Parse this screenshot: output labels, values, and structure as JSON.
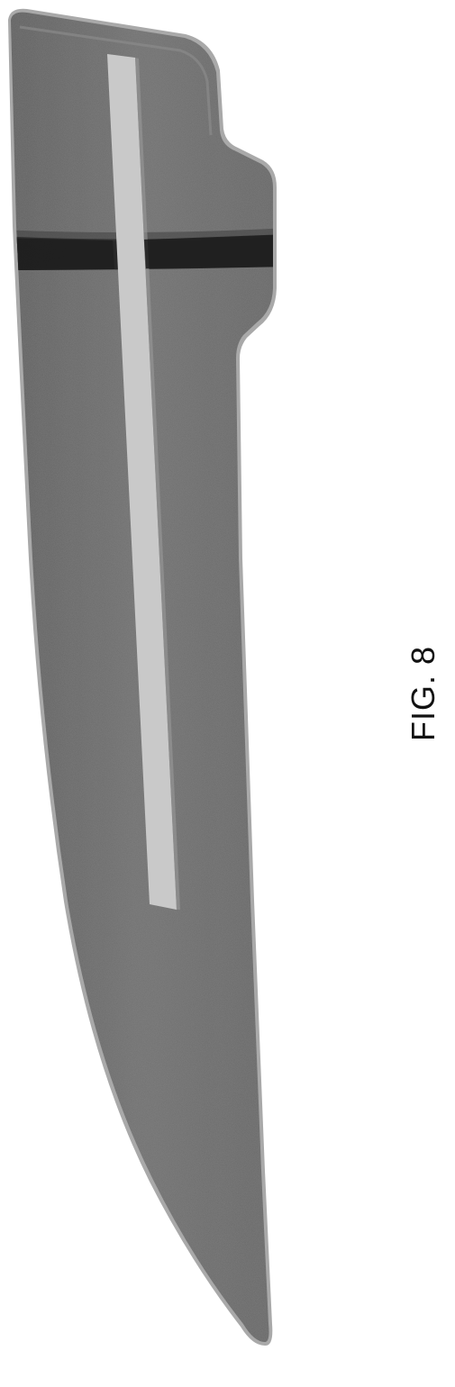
{
  "figure": {
    "caption": "FIG. 8",
    "subject_icon": "blade-icon"
  },
  "colors": {
    "background": "#ffffff",
    "blade_body": "#6e6e6e",
    "blade_edge_highlight": "#a9a9a9",
    "center_stripe": "#c9c9c9",
    "band": "#222222",
    "outline": "#4a4a4a",
    "caption": "#111111"
  }
}
